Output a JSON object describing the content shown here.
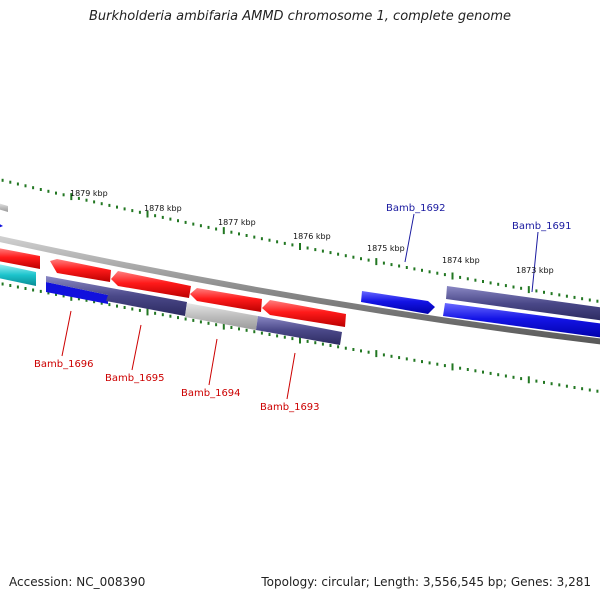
{
  "title": "Burkholderia ambifaria AMMD chromosome 1, complete genome",
  "footer": {
    "accession": "Accession: NC_008390",
    "topology": "Topology: circular; Length: 3,556,545 bp; Genes: 3,281"
  },
  "scale_labels": [
    "1879 kbp",
    "1878 kbp",
    "1877 kbp",
    "1876 kbp",
    "1875 kbp",
    "1874 kbp",
    "1873 kbp"
  ],
  "gene_labels": [
    "Bamb_1692",
    "Bamb_1691",
    "Bamb_1696",
    "Bamb_1695",
    "Bamb_1694",
    "Bamb_1693"
  ],
  "colors": {
    "reverse_gene": "#ee1111",
    "forward_gene": "#1111dd",
    "gray_feature": "#bbbbbb",
    "purple_feature": "#4c4a8c",
    "cyan_feature": "#22c8d0",
    "backbone": "#888888",
    "ticks": "#227722"
  }
}
